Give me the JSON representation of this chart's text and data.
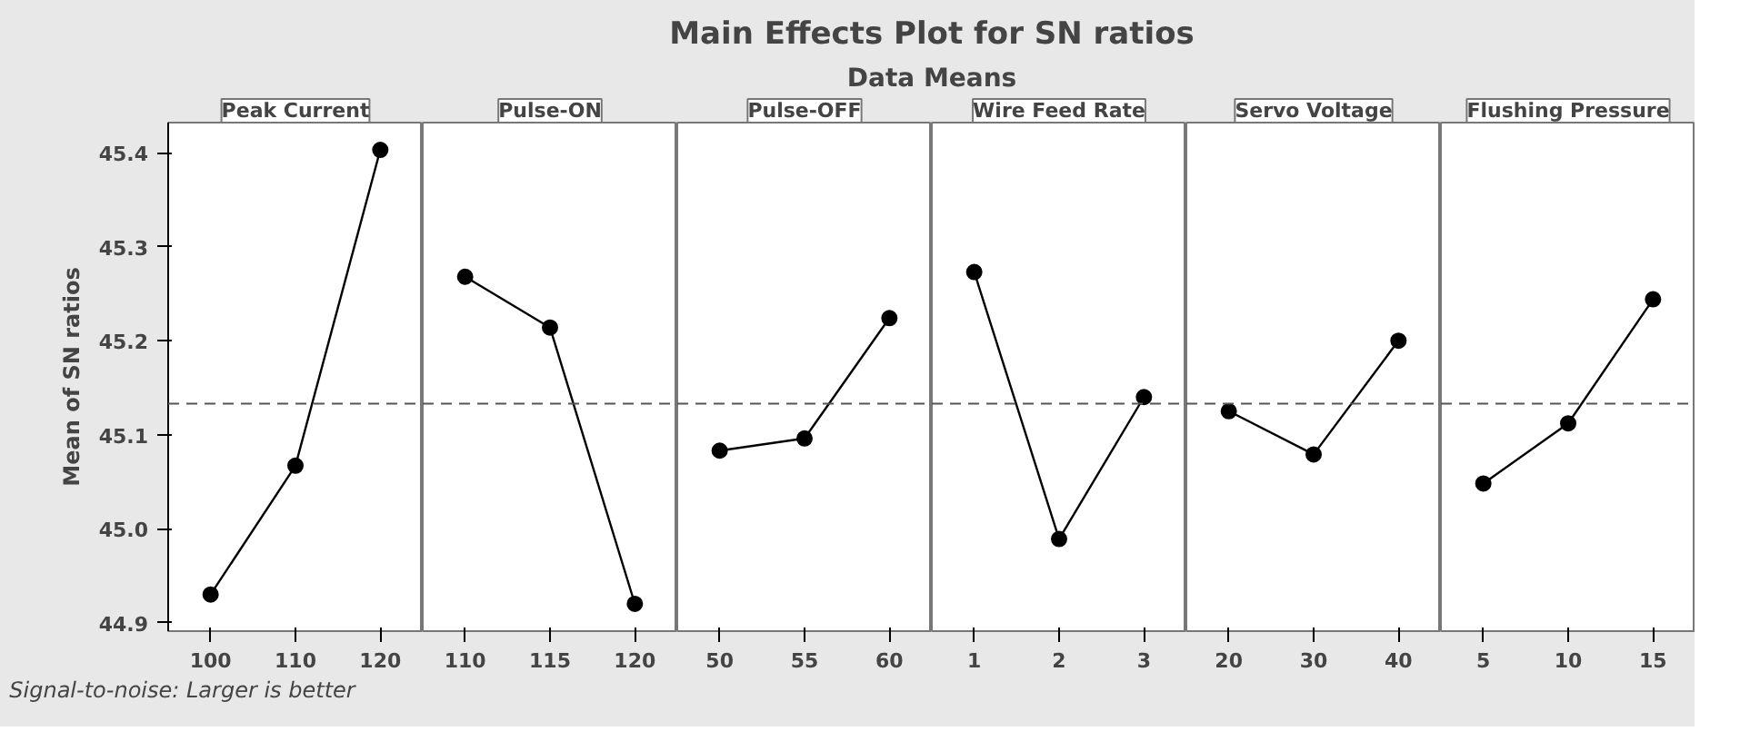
{
  "chart_data": [
    {
      "type": "other",
      "title": "Main Effects Plot for SN ratios",
      "subtitle": "Data Means",
      "annotations": [
        "Signal-to-noise: Larger is better"
      ]
    },
    {
      "type": "line",
      "title": "Peak Current",
      "ylabel": "Mean of SN ratios",
      "categories": [
        "100",
        "110",
        "120"
      ],
      "values": [
        44.93,
        45.067,
        45.403
      ],
      "color": "#000000",
      "marker": "circle",
      "line_style": "solid",
      "grid": false,
      "ylim": [
        44.891,
        45.432
      ],
      "yticks": [
        {
          "value": 44.9,
          "label": "44.9"
        },
        {
          "value": 45.0,
          "label": "45.0"
        },
        {
          "value": 45.1,
          "label": "45.1"
        },
        {
          "value": 45.2,
          "label": "45.2"
        },
        {
          "value": 45.3,
          "label": "45.3"
        },
        {
          "value": 45.4,
          "label": "45.4"
        }
      ],
      "ref_lines": [
        {
          "axis": "y",
          "value": 45.133,
          "color": "#555555",
          "line_style": "dashed"
        }
      ]
    },
    {
      "type": "line",
      "title": "Pulse-ON",
      "categories": [
        "110",
        "115",
        "120"
      ],
      "values": [
        45.268,
        45.214,
        44.92
      ],
      "color": "#000000",
      "marker": "circle",
      "line_style": "solid",
      "grid": false,
      "ylim": [
        44.891,
        45.432
      ],
      "tick_labels": "x",
      "ref_lines": [
        {
          "axis": "y",
          "value": 45.133,
          "color": "#555555",
          "line_style": "dashed"
        }
      ]
    },
    {
      "type": "line",
      "title": "Pulse-OFF",
      "categories": [
        "50",
        "55",
        "60"
      ],
      "values": [
        45.083,
        45.096,
        45.224
      ],
      "color": "#000000",
      "marker": "circle",
      "line_style": "solid",
      "grid": false,
      "ylim": [
        44.891,
        45.432
      ],
      "tick_labels": "x",
      "ref_lines": [
        {
          "axis": "y",
          "value": 45.133,
          "color": "#555555",
          "line_style": "dashed"
        }
      ]
    },
    {
      "type": "line",
      "title": "Wire Feed Rate",
      "categories": [
        "1",
        "2",
        "3"
      ],
      "values": [
        45.273,
        44.989,
        45.14
      ],
      "color": "#000000",
      "marker": "circle",
      "line_style": "solid",
      "grid": false,
      "ylim": [
        44.891,
        45.432
      ],
      "tick_labels": "x",
      "ref_lines": [
        {
          "axis": "y",
          "value": 45.133,
          "color": "#555555",
          "line_style": "dashed"
        }
      ]
    },
    {
      "type": "line",
      "title": "Servo Voltage",
      "categories": [
        "20",
        "30",
        "40"
      ],
      "values": [
        45.125,
        45.079,
        45.2
      ],
      "color": "#000000",
      "marker": "circle",
      "line_style": "solid",
      "grid": false,
      "ylim": [
        44.891,
        45.432
      ],
      "tick_labels": "x",
      "ref_lines": [
        {
          "axis": "y",
          "value": 45.133,
          "color": "#555555",
          "line_style": "dashed"
        }
      ]
    },
    {
      "type": "line",
      "title": "Flushing Pressure",
      "categories": [
        "5",
        "10",
        "15"
      ],
      "values": [
        45.048,
        45.112,
        45.244
      ],
      "color": "#000000",
      "marker": "circle",
      "line_style": "solid",
      "grid": false,
      "ylim": [
        44.891,
        45.432
      ],
      "tick_labels": "x",
      "ref_lines": [
        {
          "axis": "y",
          "value": 45.133,
          "color": "#555555",
          "line_style": "dashed"
        }
      ]
    }
  ]
}
